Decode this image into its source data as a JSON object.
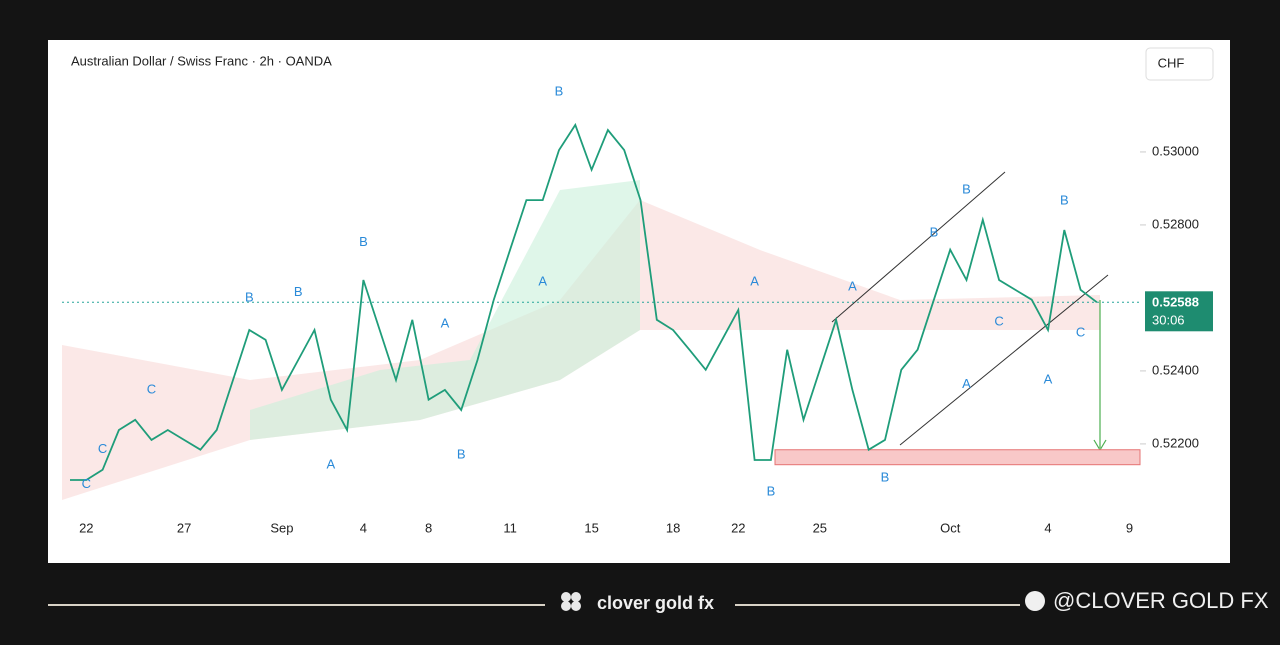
{
  "chart_data": {
    "type": "line",
    "title": "Australian Dollar / Swiss Franc · 2h · OANDA",
    "currency": "CHF",
    "categories": [
      null,
      "22",
      null,
      null,
      null,
      null,
      null,
      "27",
      null,
      null,
      null,
      null,
      null,
      "Sep",
      null,
      null,
      null,
      null,
      "4",
      null,
      null,
      null,
      "8",
      null,
      null,
      null,
      null,
      "11",
      null,
      null,
      null,
      null,
      "15",
      null,
      null,
      null,
      null,
      "18",
      null,
      null,
      null,
      "22",
      null,
      null,
      null,
      null,
      "25",
      null,
      null,
      null,
      null,
      null,
      null,
      null,
      "Oct",
      null,
      null,
      null,
      null,
      null,
      "4",
      null,
      null,
      null,
      null,
      "9"
    ],
    "series": [
      {
        "color": "#1f9d7a",
        "values": [
          0.52101,
          0.52101,
          0.52129,
          0.52238,
          0.52266,
          0.52211,
          0.52238,
          0.52211,
          0.52184,
          0.52238,
          0.52375,
          0.52512,
          0.52485,
          0.52348,
          0.5243,
          0.52512,
          0.52321,
          0.52238,
          0.52649,
          0.52512,
          0.52375,
          0.5254,
          0.52321,
          0.52348,
          0.52293,
          0.5243,
          0.52595,
          0.52732,
          0.52868,
          0.52868,
          0.53005,
          0.53074,
          0.52951,
          0.5306,
          0.53005,
          0.52868,
          0.5254,
          0.52512,
          0.52458,
          0.52403,
          0.52485,
          0.52567,
          0.52156,
          0.52156,
          0.52458,
          0.52266,
          0.52403,
          0.5254,
          0.52348,
          0.52184,
          0.52211,
          0.52403,
          0.52458,
          0.52595,
          0.52732,
          0.52649,
          0.52814,
          0.52649,
          0.52622,
          0.52595,
          0.52512,
          0.52786,
          0.52622,
          0.52588,
          null,
          null
        ]
      }
    ],
    "ylim": [
      0.51923,
      0.53293
    ],
    "yticks": [
      {
        "value": 0.522,
        "label": "0.52200"
      },
      {
        "value": 0.524,
        "label": "0.52400"
      },
      {
        "value": 0.528,
        "label": "0.52800"
      },
      {
        "value": 0.53,
        "label": "0.53000"
      }
    ],
    "last_price": {
      "value": 0.52588,
      "label": "0.52588"
    },
    "countdown": "30:06",
    "support_zone": [
      0.52143,
      0.52184
    ],
    "annotations": [
      {
        "text": "B",
        "x": 30,
        "y": 0.53164
      },
      {
        "text": "B",
        "x": 11,
        "y": 0.526
      },
      {
        "text": "B",
        "x": 14,
        "y": 0.52614
      },
      {
        "text": "B",
        "x": 18,
        "y": 0.52751
      },
      {
        "text": "A",
        "x": 23,
        "y": 0.52529
      },
      {
        "text": "B",
        "x": 24,
        "y": 0.5217
      },
      {
        "text": "A",
        "x": 16,
        "y": 0.52142
      },
      {
        "text": "A",
        "x": 29,
        "y": 0.52644
      },
      {
        "text": "A",
        "x": 42,
        "y": 0.52644
      },
      {
        "text": "A",
        "x": 48,
        "y": 0.5263
      },
      {
        "text": "B",
        "x": 43,
        "y": 0.52068
      },
      {
        "text": "B",
        "x": 50,
        "y": 0.52107
      },
      {
        "text": "B",
        "x": 53,
        "y": 0.52778
      },
      {
        "text": "B",
        "x": 55,
        "y": 0.52896
      },
      {
        "text": "C",
        "x": 57,
        "y": 0.52534
      },
      {
        "text": "A",
        "x": 55,
        "y": 0.52362
      },
      {
        "text": "B",
        "x": 61,
        "y": 0.52866
      },
      {
        "text": "A",
        "x": 60,
        "y": 0.52375
      },
      {
        "text": "C",
        "x": 62,
        "y": 0.52504
      },
      {
        "text": "C",
        "x": 5,
        "y": 0.52348
      },
      {
        "text": "C",
        "x": 2,
        "y": 0.52184
      },
      {
        "text": "C",
        "x": 1,
        "y": 0.52088
      }
    ]
  },
  "footer": {
    "brand": "clover gold fx",
    "handle": "@CLOVER GOLD FX"
  }
}
